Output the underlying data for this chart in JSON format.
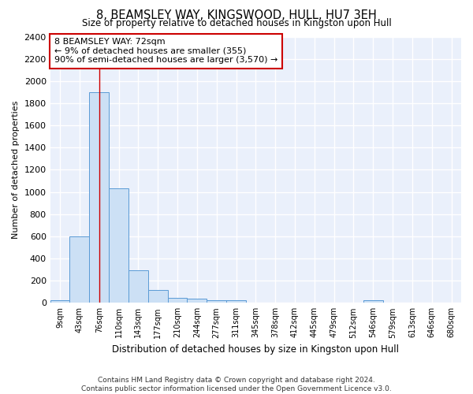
{
  "title": "8, BEAMSLEY WAY, KINGSWOOD, HULL, HU7 3EH",
  "subtitle": "Size of property relative to detached houses in Kingston upon Hull",
  "xlabel": "Distribution of detached houses by size in Kingston upon Hull",
  "ylabel": "Number of detached properties",
  "bar_color": "#cce0f5",
  "bar_edge_color": "#5b9bd5",
  "bg_color": "#eaf0fb",
  "grid_color": "#ffffff",
  "categories": [
    "9sqm",
    "43sqm",
    "76sqm",
    "110sqm",
    "143sqm",
    "177sqm",
    "210sqm",
    "244sqm",
    "277sqm",
    "311sqm",
    "345sqm",
    "378sqm",
    "412sqm",
    "445sqm",
    "479sqm",
    "512sqm",
    "546sqm",
    "579sqm",
    "613sqm",
    "646sqm",
    "680sqm"
  ],
  "values": [
    20,
    600,
    1900,
    1030,
    290,
    115,
    45,
    35,
    20,
    20,
    0,
    0,
    0,
    0,
    0,
    0,
    20,
    0,
    0,
    0,
    0
  ],
  "ylim": [
    0,
    2400
  ],
  "yticks": [
    0,
    200,
    400,
    600,
    800,
    1000,
    1200,
    1400,
    1600,
    1800,
    2000,
    2200,
    2400
  ],
  "property_line_x": 2,
  "annotation_line1": "8 BEAMSLEY WAY: 72sqm",
  "annotation_line2": "← 9% of detached houses are smaller (355)",
  "annotation_line3": "90% of semi-detached houses are larger (3,570) →",
  "annotation_box_color": "#ffffff",
  "annotation_box_edge": "#cc0000",
  "footer1": "Contains HM Land Registry data © Crown copyright and database right 2024.",
  "footer2": "Contains public sector information licensed under the Open Government Licence v3.0."
}
